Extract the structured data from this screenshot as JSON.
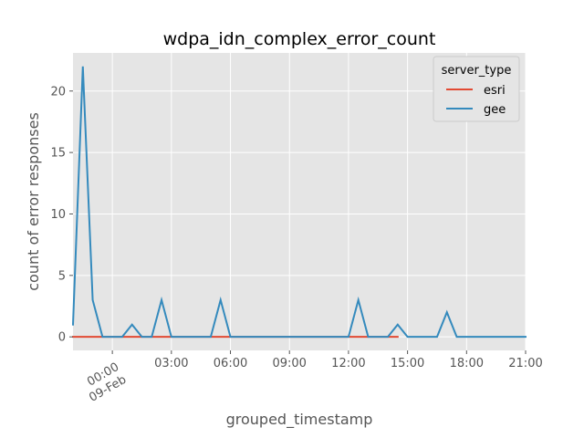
{
  "chart_data": {
    "type": "line",
    "title": "wdpa_idn_complex_error_count",
    "xlabel": "grouped_timestamp",
    "ylabel": "count of error responses",
    "x_unit": "hours since 00:00 09-Feb",
    "xlim": [
      -2,
      21
    ],
    "ylim": [
      -1.1,
      23.1
    ],
    "yticks": [
      0,
      5,
      10,
      15,
      20
    ],
    "xticks": [
      {
        "x": 0,
        "label": "00:00",
        "sublabel": "09-Feb"
      },
      {
        "x": 3,
        "label": "03:00"
      },
      {
        "x": 6,
        "label": "06:00"
      },
      {
        "x": 9,
        "label": "09:00"
      },
      {
        "x": 12,
        "label": "12:00"
      },
      {
        "x": 15,
        "label": "15:00"
      },
      {
        "x": 18,
        "label": "18:00"
      },
      {
        "x": 21,
        "label": "21:00"
      }
    ],
    "grid": true,
    "background": "#e5e5e5",
    "legend": {
      "title": "server_type",
      "position": "top-right"
    },
    "series": [
      {
        "name": "esri",
        "color": "#e24a33",
        "x": [
          -2,
          -1.5,
          -1,
          -0.5,
          0,
          0.5,
          1,
          1.5,
          2,
          2.5,
          3,
          3.5,
          4,
          4.5,
          5,
          5.5,
          6,
          6.5,
          7,
          7.5,
          8,
          8.5,
          9,
          9.5,
          10,
          10.5,
          11,
          11.5,
          12,
          12.5,
          13,
          13.5,
          14,
          14.5
        ],
        "y": [
          0,
          0,
          0,
          0,
          0,
          0,
          0,
          0,
          0,
          0,
          0,
          0,
          0,
          0,
          0,
          0,
          0,
          0,
          0,
          0,
          0,
          0,
          0,
          0,
          0,
          0,
          0,
          0,
          0,
          0,
          0,
          0,
          0,
          0
        ]
      },
      {
        "name": "gee",
        "color": "#348abd",
        "x": [
          -2,
          -1.5,
          -1,
          -0.5,
          0,
          0.5,
          1,
          1.5,
          2,
          2.5,
          3,
          3.5,
          4,
          4.5,
          5,
          5.5,
          6,
          6.5,
          7,
          7.5,
          8,
          8.5,
          9,
          9.5,
          10,
          10.5,
          11,
          11.5,
          12,
          12.5,
          13,
          13.5,
          14,
          14.5,
          15,
          15.5,
          16,
          16.5,
          17,
          17.5,
          18,
          18.5,
          19,
          19.5,
          20,
          20.5,
          21
        ],
        "y": [
          1,
          22,
          3,
          0,
          0,
          0,
          1,
          0,
          0,
          3,
          0,
          0,
          0,
          0,
          0,
          3,
          0,
          0,
          0,
          0,
          0,
          0,
          0,
          0,
          0,
          0,
          0,
          0,
          0,
          3,
          0,
          0,
          0,
          1,
          0,
          0,
          0,
          0,
          2,
          0,
          0,
          0,
          0,
          0,
          0,
          0,
          0
        ]
      }
    ]
  }
}
